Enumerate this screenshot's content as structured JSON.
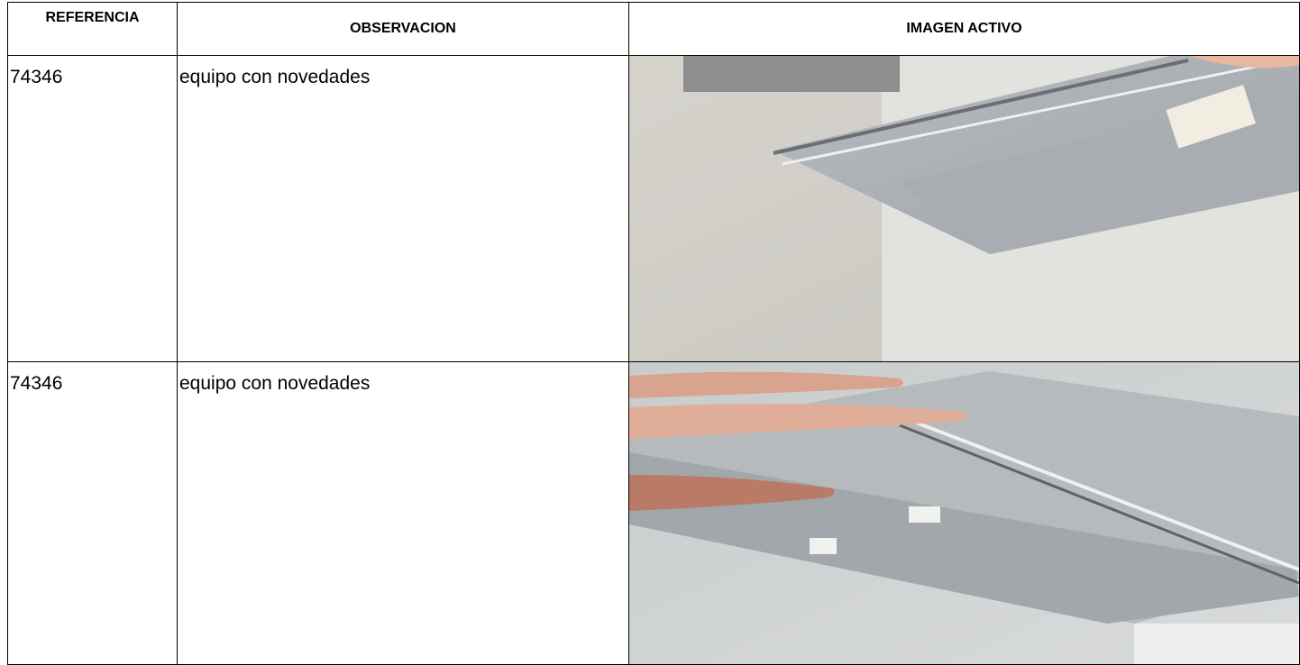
{
  "table": {
    "headers": [
      "REFERENCIA",
      "OBSERVACION",
      "IMAGEN ACTIVO"
    ],
    "rows": [
      [
        "74346",
        "equipo con novedades"
      ],
      [
        "74346",
        "equipo con novedades"
      ]
    ]
  }
}
